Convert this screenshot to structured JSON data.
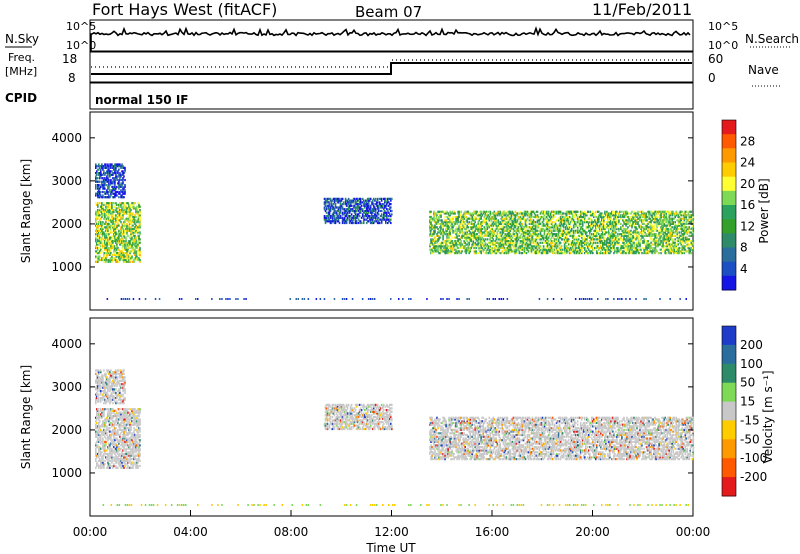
{
  "header": {
    "station": "Fort Hays West (fitACF)",
    "beam": "Beam 07",
    "date": "11/Feb/2011"
  },
  "top_panel": {
    "left_label": "N.Sky",
    "left_ticks": [
      "10^5",
      "10^0"
    ],
    "right_label": "N.Search",
    "right_ticks": [
      "10^5",
      "10^0"
    ]
  },
  "freq_panel": {
    "left_label_line1": "Freq.",
    "left_label_line2": "[MHz]",
    "left_ticks": [
      "18",
      "8"
    ],
    "right_label": "Nave",
    "right_ticks": [
      "60",
      "0"
    ]
  },
  "cpid_panel": {
    "label": "CPID",
    "text": "normal 150 IF"
  },
  "chart_data": [
    {
      "type": "heatmap",
      "name": "power",
      "ylabel": "Slant Range [km]",
      "y_ticks": [
        1000,
        2000,
        3000,
        4000
      ],
      "ylim": [
        0,
        4600
      ],
      "xlim_hours": [
        0,
        24
      ],
      "colorbar": {
        "label": "Power [dB]",
        "ticks": [
          "28",
          "24",
          "20",
          "16",
          "12",
          "8",
          "4"
        ],
        "colors": [
          "#e41a1c",
          "#ff5a00",
          "#ff9900",
          "#ffcc00",
          "#ffff33",
          "#7ed957",
          "#2ca25f",
          "#33a02c",
          "#2d8b6a",
          "#2b6e9e",
          "#1d4fc4",
          "#1515e6"
        ]
      },
      "blocks": [
        {
          "t0": 0.2,
          "t1": 2.0,
          "r0": 1100,
          "r1": 2500,
          "level": 0.55
        },
        {
          "t0": 0.2,
          "t1": 1.4,
          "r0": 2600,
          "r1": 3400,
          "level": 0.1
        },
        {
          "t0": 9.3,
          "t1": 12.0,
          "r0": 2000,
          "r1": 2600,
          "level": 0.15
        },
        {
          "t0": 13.5,
          "t1": 24.0,
          "r0": 1300,
          "r1": 2300,
          "level": 0.5
        }
      ]
    },
    {
      "type": "heatmap",
      "name": "velocity",
      "ylabel": "Slant Range [km]",
      "y_ticks": [
        1000,
        2000,
        3000,
        4000
      ],
      "ylim": [
        0,
        4600
      ],
      "xlim_hours": [
        0,
        24
      ],
      "xlabel": "Time UT",
      "x_ticks": [
        "00:00",
        "04:00",
        "08:00",
        "12:00",
        "16:00",
        "20:00",
        "00:00"
      ],
      "colorbar": {
        "label": "Velocity [m s⁻¹]",
        "ticks": [
          "200",
          "100",
          "50",
          "15",
          "-15",
          "-50",
          "-100",
          "-200"
        ],
        "colors": [
          "#1e3cc8",
          "#2b6e9e",
          "#2d8b6a",
          "#7ed957",
          "#c8c8c8",
          "#ffcc00",
          "#ff9900",
          "#ff5a00",
          "#e41a1c"
        ]
      },
      "blocks": [
        {
          "t0": 0.2,
          "t1": 2.0,
          "r0": 1100,
          "r1": 2500
        },
        {
          "t0": 0.2,
          "t1": 1.4,
          "r0": 2600,
          "r1": 3400
        },
        {
          "t0": 9.3,
          "t1": 12.0,
          "r0": 2000,
          "r1": 2600
        },
        {
          "t0": 13.5,
          "t1": 24.0,
          "r0": 1300,
          "r1": 2300
        }
      ]
    }
  ]
}
